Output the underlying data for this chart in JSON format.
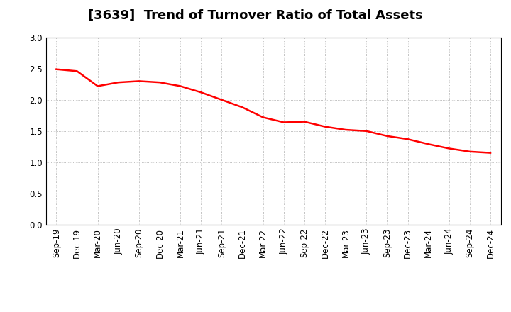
{
  "title": "[3639]  Trend of Turnover Ratio of Total Assets",
  "x_labels": [
    "Sep-19",
    "Dec-19",
    "Mar-20",
    "Jun-20",
    "Sep-20",
    "Dec-20",
    "Mar-21",
    "Jun-21",
    "Sep-21",
    "Dec-21",
    "Mar-22",
    "Jun-22",
    "Sep-22",
    "Dec-22",
    "Mar-23",
    "Jun-23",
    "Sep-23",
    "Dec-23",
    "Mar-24",
    "Jun-24",
    "Sep-24",
    "Dec-24"
  ],
  "y_values": [
    2.49,
    2.46,
    2.22,
    2.28,
    2.3,
    2.28,
    2.22,
    2.12,
    2.0,
    1.88,
    1.72,
    1.64,
    1.65,
    1.57,
    1.52,
    1.5,
    1.42,
    1.37,
    1.29,
    1.22,
    1.17,
    1.15
  ],
  "line_color": "#FF0000",
  "line_width": 1.8,
  "ylim": [
    0.0,
    3.0
  ],
  "yticks": [
    0.0,
    0.5,
    1.0,
    1.5,
    2.0,
    2.5,
    3.0
  ],
  "grid_color": "#aaaaaa",
  "background_color": "#ffffff",
  "title_fontsize": 13,
  "tick_fontsize": 8.5
}
